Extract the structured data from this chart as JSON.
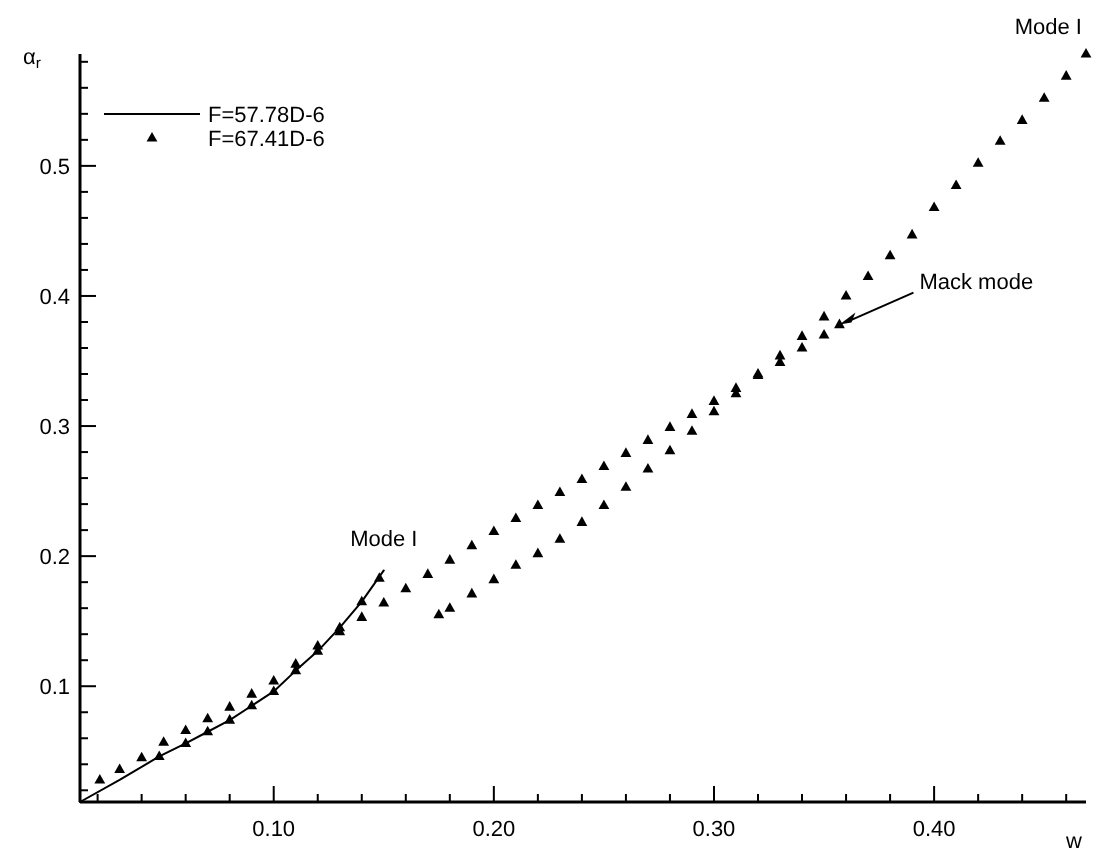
{
  "chart_data": {
    "type": "line",
    "xlabel": "w",
    "ylabel": "α$_{r}$",
    "xlim": [
      0.012,
      0.469
    ],
    "ylim": [
      0.011,
      0.586
    ],
    "xticks": [
      {
        "value": 0.02,
        "label": null
      },
      {
        "value": 0.04,
        "label": null
      },
      {
        "value": 0.06,
        "label": null
      },
      {
        "value": 0.08,
        "label": null
      },
      {
        "value": 0.1,
        "label": "0.10"
      },
      {
        "value": 0.12,
        "label": null
      },
      {
        "value": 0.14,
        "label": null
      },
      {
        "value": 0.16,
        "label": null
      },
      {
        "value": 0.18,
        "label": null
      },
      {
        "value": 0.2,
        "label": "0.20"
      },
      {
        "value": 0.22,
        "label": null
      },
      {
        "value": 0.24,
        "label": null
      },
      {
        "value": 0.26,
        "label": null
      },
      {
        "value": 0.28,
        "label": null
      },
      {
        "value": 0.3,
        "label": "0.30"
      },
      {
        "value": 0.32,
        "label": null
      },
      {
        "value": 0.34,
        "label": null
      },
      {
        "value": 0.36,
        "label": null
      },
      {
        "value": 0.38,
        "label": null
      },
      {
        "value": 0.4,
        "label": "0.40"
      },
      {
        "value": 0.42,
        "label": null
      },
      {
        "value": 0.44,
        "label": null
      },
      {
        "value": 0.46,
        "label": null
      }
    ],
    "yticks": [
      {
        "value": 0.02,
        "label": null
      },
      {
        "value": 0.04,
        "label": null
      },
      {
        "value": 0.06,
        "label": null
      },
      {
        "value": 0.08,
        "label": null
      },
      0.1,
      {
        "value": 0.12,
        "label": null
      },
      {
        "value": 0.14,
        "label": null
      },
      {
        "value": 0.16,
        "label": null
      },
      {
        "value": 0.18,
        "label": null
      },
      0.2,
      {
        "value": 0.22,
        "label": null
      },
      {
        "value": 0.24,
        "label": null
      },
      {
        "value": 0.26,
        "label": null
      },
      {
        "value": 0.28,
        "label": null
      },
      0.3,
      {
        "value": 0.32,
        "label": null
      },
      {
        "value": 0.34,
        "label": null
      },
      {
        "value": 0.36,
        "label": null
      },
      {
        "value": 0.38,
        "label": null
      },
      0.4,
      {
        "value": 0.42,
        "label": null
      },
      {
        "value": 0.44,
        "label": null
      },
      {
        "value": 0.46,
        "label": null
      },
      {
        "value": 0.48,
        "label": null
      },
      0.5,
      {
        "value": 0.52,
        "label": null
      },
      {
        "value": 0.54,
        "label": null
      },
      {
        "value": 0.56,
        "label": null
      },
      {
        "value": 0.58,
        "label": null
      }
    ],
    "grid": false,
    "legend": "top left",
    "series": [
      {
        "name": "F=57.78D-6",
        "color": "#000000",
        "marker": "none",
        "line_style": "solid",
        "x": [
          0.012,
          0.03,
          0.048,
          0.06,
          0.07,
          0.08,
          0.09,
          0.1,
          0.11,
          0.12,
          0.13,
          0.14,
          0.15
        ],
        "values": [
          0.011,
          0.028,
          0.046,
          0.056,
          0.065,
          0.074,
          0.085,
          0.096,
          0.112,
          0.127,
          0.145,
          0.165,
          0.189
        ]
      },
      {
        "name": "F=67.41D-6",
        "type": "scatter",
        "color": "#000000",
        "marker": "triangle",
        "x": [
          0.021,
          0.03,
          0.04,
          0.05,
          0.06,
          0.07,
          0.08,
          0.09,
          0.1,
          0.11,
          0.12,
          0.13,
          0.14,
          0.15,
          0.16,
          0.17,
          0.18,
          0.19,
          0.2,
          0.21,
          0.22,
          0.23,
          0.24,
          0.25,
          0.26,
          0.27,
          0.28,
          0.29,
          0.3,
          0.31,
          0.32,
          0.33,
          0.34,
          0.35,
          0.357,
          0.048,
          0.06,
          0.07,
          0.08,
          0.09,
          0.1,
          0.11,
          0.12,
          0.13,
          0.14,
          0.148,
          0.175,
          0.18,
          0.19,
          0.2,
          0.21,
          0.22,
          0.23,
          0.24,
          0.25,
          0.26,
          0.27,
          0.28,
          0.29,
          0.3,
          0.31,
          0.32,
          0.33,
          0.34,
          0.35,
          0.36,
          0.37,
          0.38,
          0.39,
          0.4,
          0.41,
          0.42,
          0.43,
          0.44,
          0.45,
          0.46,
          0.469
        ],
        "values": [
          0.028,
          0.036,
          0.045,
          0.057,
          0.066,
          0.075,
          0.084,
          0.094,
          0.104,
          0.117,
          0.131,
          0.142,
          0.153,
          0.164,
          0.175,
          0.186,
          0.197,
          0.208,
          0.219,
          0.229,
          0.239,
          0.249,
          0.259,
          0.269,
          0.279,
          0.289,
          0.299,
          0.309,
          0.319,
          0.329,
          0.339,
          0.349,
          0.36,
          0.37,
          0.378,
          0.046,
          0.056,
          0.065,
          0.074,
          0.085,
          0.096,
          0.112,
          0.127,
          0.145,
          0.165,
          0.183,
          0.155,
          0.16,
          0.171,
          0.182,
          0.193,
          0.202,
          0.213,
          0.226,
          0.239,
          0.253,
          0.267,
          0.281,
          0.296,
          0.311,
          0.325,
          0.34,
          0.354,
          0.369,
          0.384,
          0.4,
          0.415,
          0.431,
          0.447,
          0.468,
          0.485,
          0.502,
          0.519,
          0.535,
          0.552,
          0.569,
          0.586
        ]
      }
    ],
    "annotations": [
      {
        "text": "Mode I",
        "x": 0.15,
        "y": 0.189
      },
      {
        "text": "Mode I",
        "x": 0.469,
        "y": 0.586
      },
      {
        "text": "Mack mode",
        "x": 0.357,
        "y": 0.378
      }
    ]
  }
}
